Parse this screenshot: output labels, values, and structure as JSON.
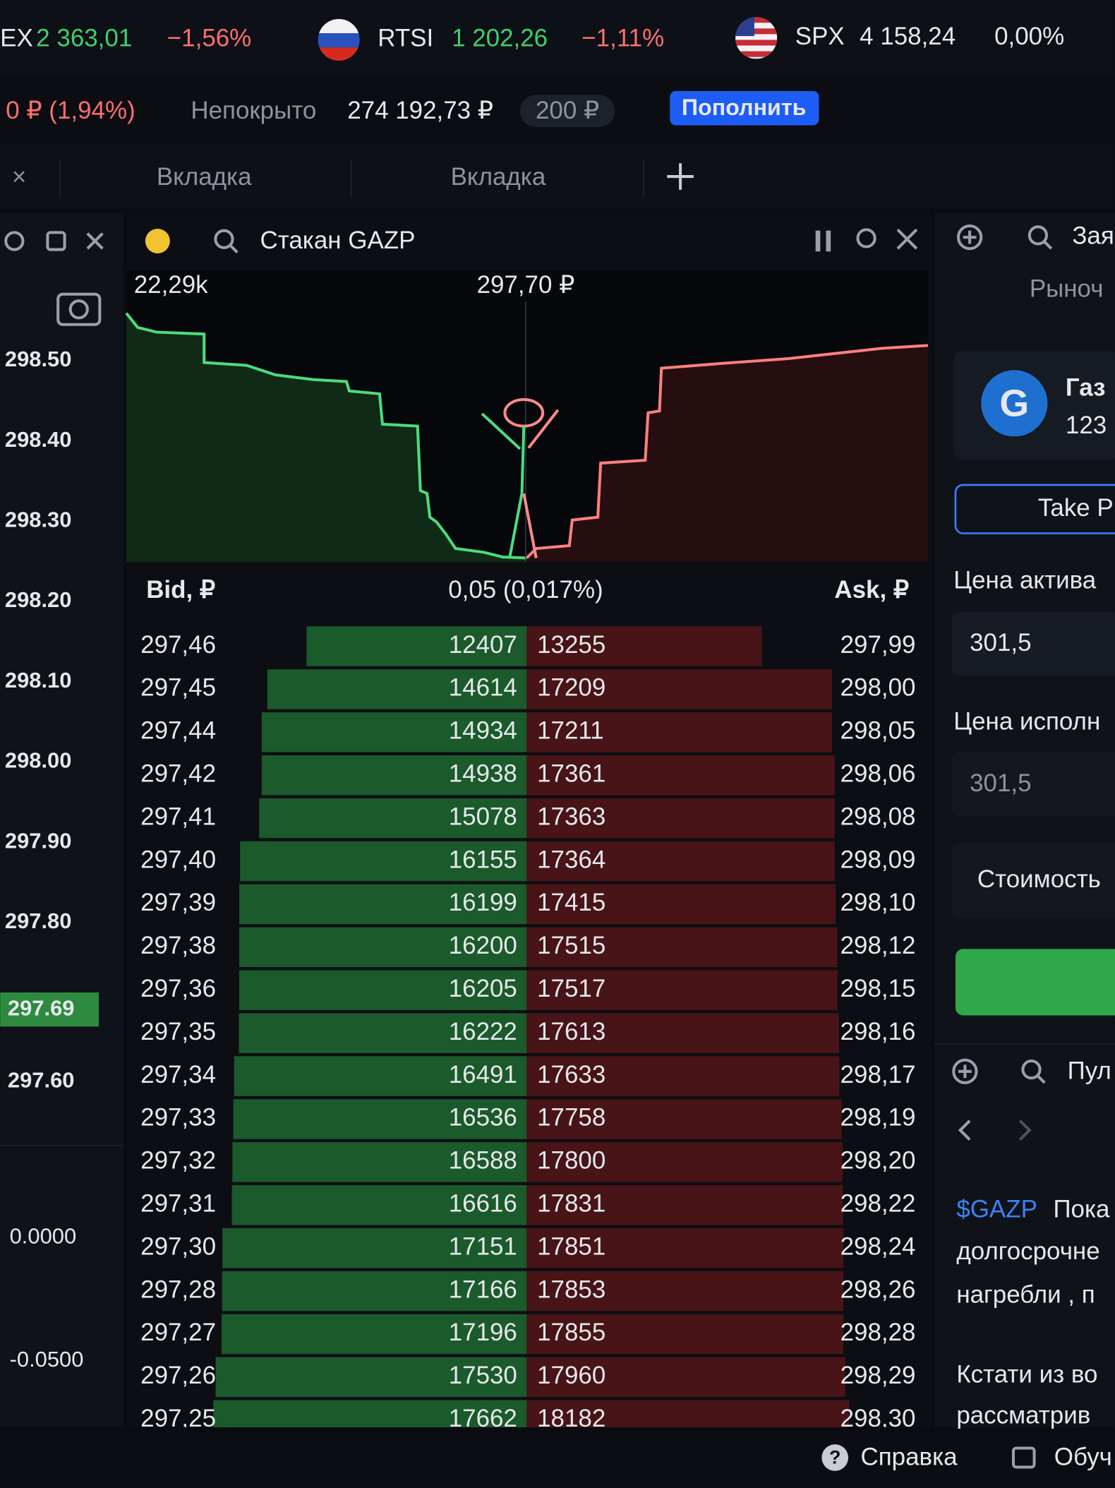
{
  "ticker": [
    {
      "name": "EX",
      "value": "2 363,01",
      "change": "−1,56%"
    },
    {
      "name": "RTSI",
      "value": "1 202,26",
      "change": "−1,11%"
    },
    {
      "name": "SPX",
      "value": "4 158,24",
      "change": "0,00%"
    }
  ],
  "account": {
    "pnl": "0 ₽ (1,94%)",
    "uncovered_label": "Непокрыто",
    "uncovered_value": "274 192,73 ₽",
    "badge": "200 ₽",
    "button": "Пополнить"
  },
  "tabs": [
    "Вкладка",
    "Вкладка"
  ],
  "left_axis": {
    "labels": [
      "298.50",
      "298.40",
      "298.30",
      "298.20",
      "298.10",
      "298.00",
      "297.90",
      "297.80"
    ],
    "current": "297.69",
    "after": [
      "297.60"
    ],
    "lower": [
      "0.0000",
      "-0.0500"
    ]
  },
  "orderbook": {
    "title": "Стакан GAZP",
    "depth_label": "22,29k",
    "mid_price": "297,70 ₽",
    "bid_header": "Bid, ₽",
    "spread": "0,05 (0,017%)",
    "ask_header": "Ask, ₽",
    "rows": [
      {
        "bid": "297,46",
        "bid_volume": 12407,
        "ask_volume": 13255,
        "ask": "297,99"
      },
      {
        "bid": "297,45",
        "bid_volume": 14614,
        "ask_volume": 17209,
        "ask": "298,00"
      },
      {
        "bid": "297,44",
        "bid_volume": 14934,
        "ask_volume": 17211,
        "ask": "298,05"
      },
      {
        "bid": "297,42",
        "bid_volume": 14938,
        "ask_volume": 17361,
        "ask": "298,06"
      },
      {
        "bid": "297,41",
        "bid_volume": 15078,
        "ask_volume": 17363,
        "ask": "298,08"
      },
      {
        "bid": "297,40",
        "bid_volume": 16155,
        "ask_volume": 17364,
        "ask": "298,09"
      },
      {
        "bid": "297,39",
        "bid_volume": 16199,
        "ask_volume": 17415,
        "ask": "298,10"
      },
      {
        "bid": "297,38",
        "bid_volume": 16200,
        "ask_volume": 17515,
        "ask": "298,12"
      },
      {
        "bid": "297,36",
        "bid_volume": 16205,
        "ask_volume": 17517,
        "ask": "298,15"
      },
      {
        "bid": "297,35",
        "bid_volume": 16222,
        "ask_volume": 17613,
        "ask": "298,16"
      },
      {
        "bid": "297,34",
        "bid_volume": 16491,
        "ask_volume": 17633,
        "ask": "298,17"
      },
      {
        "bid": "297,33",
        "bid_volume": 16536,
        "ask_volume": 17758,
        "ask": "298,19"
      },
      {
        "bid": "297,32",
        "bid_volume": 16588,
        "ask_volume": 17800,
        "ask": "298,20"
      },
      {
        "bid": "297,31",
        "bid_volume": 16616,
        "ask_volume": 17831,
        "ask": "298,22"
      },
      {
        "bid": "297,30",
        "bid_volume": 17151,
        "ask_volume": 17851,
        "ask": "298,24"
      },
      {
        "bid": "297,28",
        "bid_volume": 17166,
        "ask_volume": 17853,
        "ask": "298,26"
      },
      {
        "bid": "297,27",
        "bid_volume": 17196,
        "ask_volume": 17855,
        "ask": "298,28"
      },
      {
        "bid": "297,26",
        "bid_volume": 17530,
        "ask_volume": 17960,
        "ask": "298,29"
      },
      {
        "bid": "297,25",
        "bid_volume": 17662,
        "ask_volume": 18182,
        "ask": "298,30"
      }
    ]
  },
  "order_panel": {
    "search": "Зая",
    "tab": "Рыноч",
    "company": "Газ",
    "company_sub": "123",
    "take_button": "Take P",
    "asset_price_label": "Цена актива",
    "asset_price": "301,5",
    "exec_price_label": "Цена исполн",
    "exec_price": "301,5",
    "cost_label": "Стоимость"
  },
  "feed": {
    "search": "Пул",
    "ticker": "$GAZP",
    "lines": [
      "Пока",
      "долгосрочне",
      "нагребли , п",
      "Кстати из во",
      "рассматрив"
    ]
  },
  "footer": {
    "help": "Справка",
    "learn": "Обуч"
  }
}
